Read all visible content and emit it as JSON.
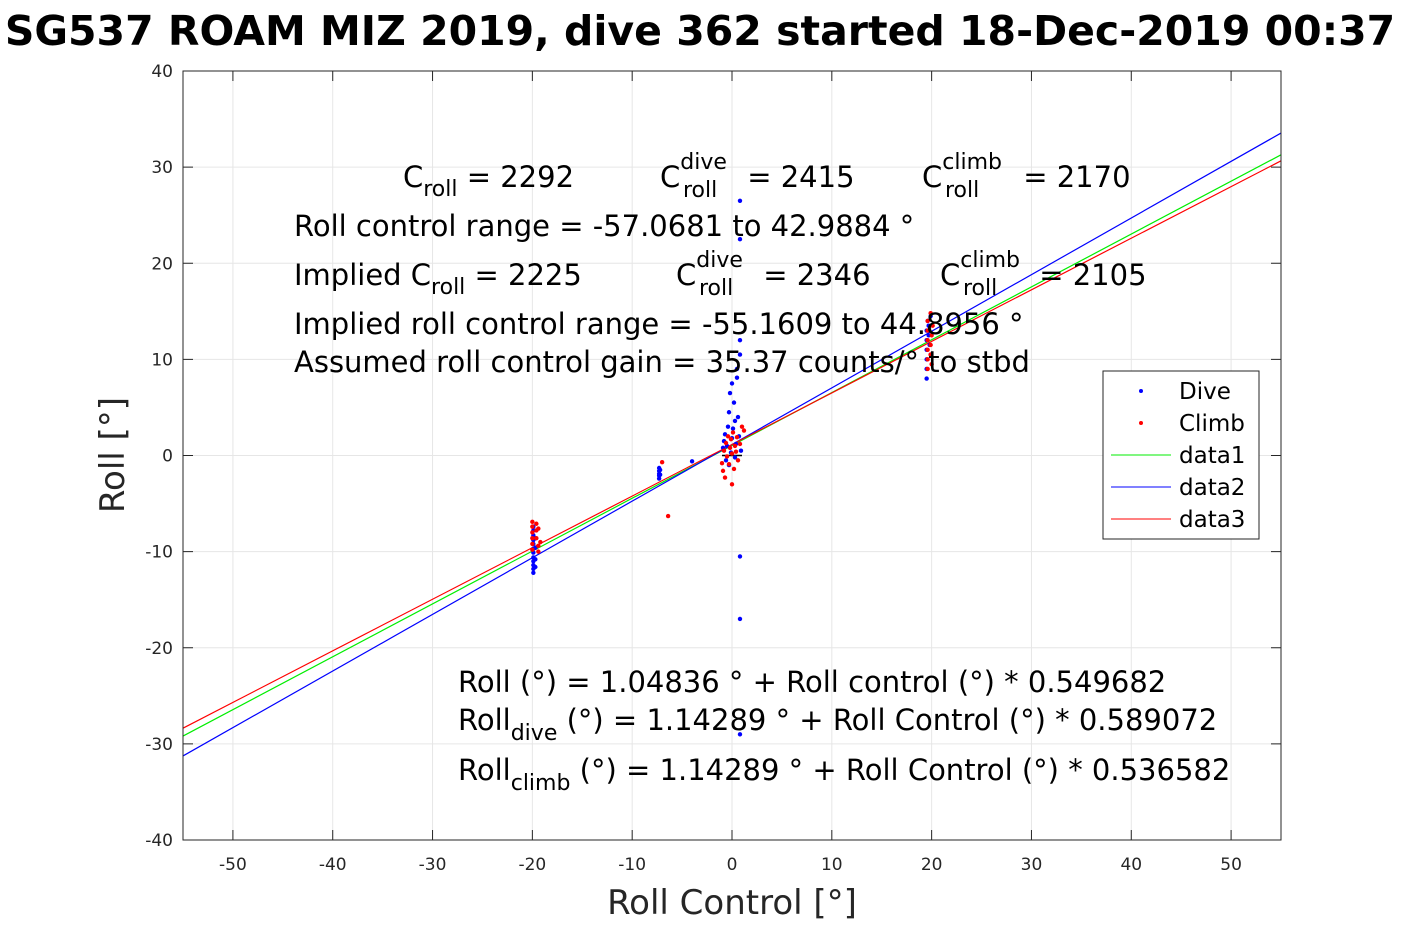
{
  "chart_data": {
    "type": "scatter",
    "title": "SG537 ROAM MIZ 2019, dive 362 started 18-Dec-2019 00:37",
    "xlabel": "Roll Control [°]",
    "ylabel": "Roll [°]",
    "xlim": [
      -55,
      55
    ],
    "ylim": [
      -40,
      40
    ],
    "xticks": [
      -50,
      -40,
      -30,
      -20,
      -10,
      0,
      10,
      20,
      30,
      40,
      50
    ],
    "yticks": [
      -40,
      -30,
      -20,
      -10,
      0,
      10,
      20,
      30,
      40
    ],
    "grid": true,
    "legend_position": "right",
    "scatter_series": [
      {
        "name": "Dive",
        "color": "#0000ff",
        "points": [
          [
            -19.9,
            -7.4
          ],
          [
            -19.9,
            -7.8
          ],
          [
            -19.9,
            -8.3
          ],
          [
            -19.9,
            -8.8
          ],
          [
            -19.9,
            -9.2
          ],
          [
            -19.9,
            -9.7
          ],
          [
            -19.9,
            -10.1
          ],
          [
            -19.9,
            -10.6
          ],
          [
            -19.9,
            -11.0
          ],
          [
            -19.9,
            -11.4
          ],
          [
            -19.9,
            -11.8
          ],
          [
            -19.9,
            -12.2
          ],
          [
            -19.7,
            -8.6
          ],
          [
            -19.7,
            -9.6
          ],
          [
            -19.7,
            -10.8
          ],
          [
            -19.7,
            -11.6
          ],
          [
            -7.3,
            -1.3
          ],
          [
            -7.3,
            -1.6
          ],
          [
            -7.3,
            -1.9
          ],
          [
            -7.3,
            -2.1
          ],
          [
            -7.3,
            -2.4
          ],
          [
            -7.2,
            -1.5
          ],
          [
            -7.2,
            -2.0
          ],
          [
            -4.0,
            -0.6
          ],
          [
            -0.9,
            0.8
          ],
          [
            -0.8,
            1.5
          ],
          [
            -0.7,
            2.2
          ],
          [
            -0.6,
            -0.5
          ],
          [
            -0.5,
            1.0
          ],
          [
            -0.4,
            3.0
          ],
          [
            -0.3,
            4.5
          ],
          [
            -0.3,
            -1.0
          ],
          [
            -0.2,
            6.5
          ],
          [
            -0.1,
            0.3
          ],
          [
            0.0,
            1.8
          ],
          [
            0.0,
            7.5
          ],
          [
            0.1,
            2.8
          ],
          [
            0.2,
            5.5
          ],
          [
            0.3,
            3.6
          ],
          [
            0.3,
            -0.2
          ],
          [
            0.4,
            1.2
          ],
          [
            0.5,
            9.0
          ],
          [
            0.5,
            8.1
          ],
          [
            0.6,
            4.0
          ],
          [
            0.7,
            2.0
          ],
          [
            0.8,
            10.5
          ],
          [
            0.8,
            12.0
          ],
          [
            0.9,
            0.5
          ],
          [
            0.8,
            26.5
          ],
          [
            0.8,
            22.5
          ],
          [
            0.8,
            -10.5
          ],
          [
            0.8,
            -17.0
          ],
          [
            0.8,
            -29.0
          ],
          [
            19.5,
            8.0
          ],
          [
            19.5,
            9.0
          ],
          [
            19.5,
            10.0
          ],
          [
            19.5,
            11.0
          ],
          [
            19.5,
            12.0
          ],
          [
            19.5,
            13.0
          ],
          [
            19.6,
            14.0
          ],
          [
            19.7,
            12.5
          ],
          [
            19.7,
            13.5
          ],
          [
            19.8,
            11.5
          ],
          [
            19.9,
            10.5
          ],
          [
            19.9,
            14.5
          ]
        ]
      },
      {
        "name": "Climb",
        "color": "#ff0000",
        "points": [
          [
            -20.0,
            -6.9
          ],
          [
            -20.0,
            -7.4
          ],
          [
            -20.0,
            -8.0
          ],
          [
            -20.0,
            -8.6
          ],
          [
            -20.0,
            -9.2
          ],
          [
            -20.0,
            -9.8
          ],
          [
            -19.6,
            -7.1
          ],
          [
            -19.6,
            -7.8
          ],
          [
            -19.6,
            -8.6
          ],
          [
            -19.4,
            -9.4
          ],
          [
            -19.4,
            -10.0
          ],
          [
            -19.4,
            -7.6
          ],
          [
            -19.2,
            -9.0
          ],
          [
            -7.0,
            -0.7
          ],
          [
            -6.4,
            -6.3
          ],
          [
            -1.0,
            -0.8
          ],
          [
            -0.9,
            -1.6
          ],
          [
            -0.8,
            0.5
          ],
          [
            -0.7,
            -2.3
          ],
          [
            -0.6,
            1.3
          ],
          [
            -0.5,
            -0.1
          ],
          [
            -0.4,
            2.0
          ],
          [
            -0.3,
            -0.9
          ],
          [
            -0.2,
            0.8
          ],
          [
            -0.1,
            1.7
          ],
          [
            0.0,
            -3.0
          ],
          [
            0.0,
            0.2
          ],
          [
            0.1,
            2.4
          ],
          [
            0.2,
            -1.4
          ],
          [
            0.3,
            1.0
          ],
          [
            0.4,
            0.4
          ],
          [
            0.5,
            1.9
          ],
          [
            0.6,
            -0.5
          ],
          [
            0.8,
            1.2
          ],
          [
            1.0,
            3.0
          ],
          [
            1.2,
            2.6
          ],
          [
            19.6,
            9.0
          ],
          [
            19.6,
            10.0
          ],
          [
            19.6,
            11.0
          ],
          [
            19.6,
            12.0
          ],
          [
            19.6,
            13.0
          ],
          [
            19.6,
            14.0
          ],
          [
            19.9,
            14.8
          ],
          [
            19.9,
            11.5
          ],
          [
            19.9,
            10.5
          ],
          [
            20.0,
            12.5
          ],
          [
            20.1,
            13.5
          ],
          [
            20.0,
            9.5
          ]
        ]
      }
    ],
    "line_series": [
      {
        "name": "data1",
        "color": "#00ee00",
        "intercept": 1.04836,
        "slope": 0.549682
      },
      {
        "name": "data2",
        "color": "#0000ff",
        "intercept": 1.14289,
        "slope": 0.589072
      },
      {
        "name": "data3",
        "color": "#ff0000",
        "intercept": 1.14289,
        "slope": 0.536582
      }
    ],
    "zero_marker": [
      [
        -1,
        0
      ],
      [
        1,
        0
      ]
    ]
  },
  "annotations": {
    "c_roll": {
      "base": "C",
      "sub": "roll",
      "rest": " = 2292"
    },
    "c_roll_dive": {
      "base": "C",
      "sup": "dive",
      "sub": "roll",
      "rest": " = 2415"
    },
    "c_roll_climb": {
      "base": "C",
      "sup": "climb",
      "sub": "roll",
      "rest": " = 2170"
    },
    "range_line": "Roll control range = -57.0681 to 42.9884 °",
    "implied_c_roll": {
      "base": "Implied C",
      "sub": "roll",
      "rest": " = 2225"
    },
    "implied_c_dive": {
      "base": "C",
      "sup": "dive",
      "sub": "roll",
      "rest": " = 2346"
    },
    "implied_c_climb": {
      "base": "C",
      "sup": "climb",
      "sub": "roll",
      "rest": " = 2105"
    },
    "implied_range_line": "Implied roll control range = -55.1609 to 44.8956 °",
    "gain_line": "Assumed roll control gain = 35.37 counts/° to stbd",
    "fit_line": "Roll (°) = 1.04836 ° + Roll control (°) * 0.549682",
    "fit_dive": {
      "base": "Roll",
      "sub": "dive",
      "rest": " (°) = 1.14289 ° + Roll Control (°) * 0.589072"
    },
    "fit_climb": {
      "base": "Roll",
      "sub": "climb",
      "rest": " (°) = 1.14289 ° + Roll Control (°) * 0.536582"
    }
  }
}
